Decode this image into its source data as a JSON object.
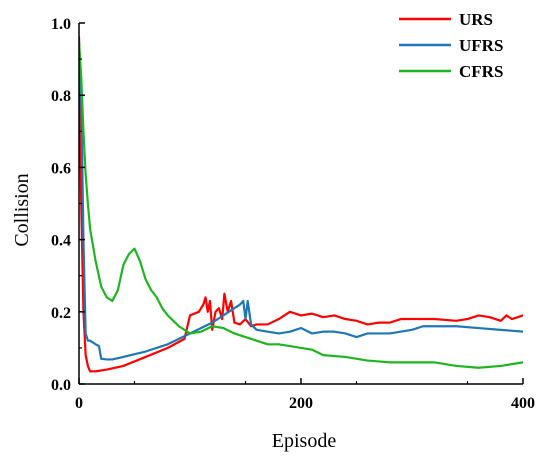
{
  "chart_data": {
    "type": "line",
    "title": "",
    "xlabel": "Episode",
    "ylabel": "Collision",
    "xlim": [
      0,
      400
    ],
    "ylim": [
      0,
      1.0
    ],
    "xticks": [
      0,
      200,
      400
    ],
    "yticks": [
      0.0,
      0.2,
      0.4,
      0.6,
      0.8,
      1.0
    ],
    "xtick_labels": [
      "0",
      "200",
      "400"
    ],
    "ytick_labels": [
      "0.0",
      "0.2",
      "0.4",
      "0.6",
      "0.8",
      "1.0"
    ],
    "grid": false,
    "legend_position": "top-right",
    "series": [
      {
        "name": "URS",
        "color": "#ff0000",
        "x": [
          0,
          2,
          4,
          6,
          8,
          10,
          15,
          25,
          40,
          60,
          80,
          95,
          100,
          108,
          112,
          114,
          116,
          118,
          120,
          123,
          126,
          129,
          131,
          134,
          137,
          140,
          145,
          150,
          155,
          160,
          170,
          180,
          185,
          190,
          200,
          210,
          220,
          230,
          240,
          250,
          260,
          270,
          280,
          290,
          300,
          320,
          340,
          350,
          360,
          370,
          380,
          385,
          390,
          400
        ],
        "y": [
          0.96,
          0.5,
          0.2,
          0.08,
          0.05,
          0.035,
          0.035,
          0.04,
          0.05,
          0.075,
          0.1,
          0.125,
          0.19,
          0.2,
          0.22,
          0.24,
          0.2,
          0.23,
          0.15,
          0.2,
          0.21,
          0.18,
          0.25,
          0.2,
          0.23,
          0.17,
          0.165,
          0.18,
          0.16,
          0.165,
          0.165,
          0.18,
          0.19,
          0.2,
          0.19,
          0.195,
          0.185,
          0.19,
          0.18,
          0.175,
          0.165,
          0.17,
          0.17,
          0.18,
          0.18,
          0.18,
          0.175,
          0.18,
          0.19,
          0.185,
          0.175,
          0.19,
          0.18,
          0.19
        ]
      },
      {
        "name": "UFRS",
        "color": "#1f77b4",
        "x": [
          0,
          2,
          4,
          6,
          8,
          10,
          15,
          18,
          20,
          25,
          30,
          40,
          60,
          80,
          100,
          120,
          135,
          140,
          145,
          148,
          150,
          152,
          155,
          160,
          170,
          180,
          190,
          200,
          210,
          220,
          230,
          240,
          250,
          260,
          280,
          300,
          310,
          320,
          340,
          360,
          380,
          400
        ],
        "y": [
          0.95,
          0.8,
          0.4,
          0.14,
          0.12,
          0.12,
          0.11,
          0.105,
          0.07,
          0.068,
          0.068,
          0.075,
          0.09,
          0.11,
          0.14,
          0.17,
          0.2,
          0.21,
          0.22,
          0.23,
          0.18,
          0.23,
          0.165,
          0.15,
          0.145,
          0.14,
          0.145,
          0.155,
          0.14,
          0.145,
          0.145,
          0.14,
          0.13,
          0.14,
          0.14,
          0.15,
          0.16,
          0.16,
          0.16,
          0.155,
          0.15,
          0.145
        ]
      },
      {
        "name": "CFRS",
        "color": "#1fb51f",
        "x": [
          0,
          2,
          4,
          6,
          8,
          10,
          15,
          20,
          25,
          30,
          35,
          40,
          45,
          50,
          55,
          60,
          65,
          70,
          75,
          80,
          90,
          100,
          110,
          120,
          130,
          140,
          150,
          160,
          170,
          180,
          190,
          200,
          210,
          220,
          240,
          260,
          280,
          300,
          320,
          340,
          360,
          380,
          390,
          400
        ],
        "y": [
          0.95,
          0.85,
          0.7,
          0.58,
          0.5,
          0.43,
          0.34,
          0.27,
          0.24,
          0.23,
          0.26,
          0.33,
          0.36,
          0.375,
          0.34,
          0.29,
          0.26,
          0.24,
          0.21,
          0.19,
          0.16,
          0.14,
          0.145,
          0.16,
          0.155,
          0.14,
          0.13,
          0.12,
          0.11,
          0.11,
          0.105,
          0.1,
          0.095,
          0.08,
          0.075,
          0.065,
          0.06,
          0.06,
          0.06,
          0.05,
          0.045,
          0.05,
          0.055,
          0.06
        ]
      }
    ]
  }
}
